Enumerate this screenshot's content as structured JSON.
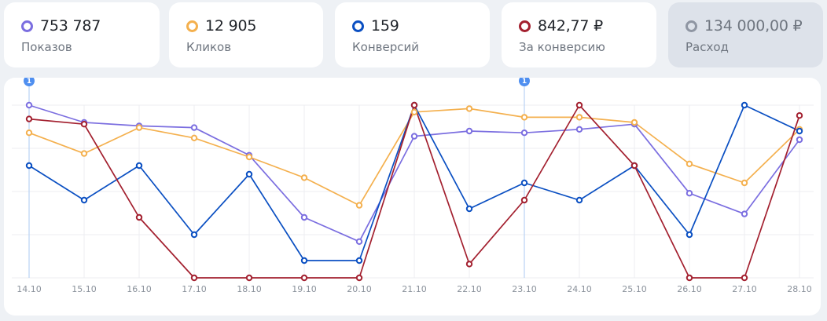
{
  "metrics": [
    {
      "value": "753 787",
      "label": "Показов",
      "color": "#7b6ee0",
      "active": true
    },
    {
      "value": "12 905",
      "label": "Кликов",
      "color": "#f4b04e",
      "active": true
    },
    {
      "value": "159",
      "label": "Конверсий",
      "color": "#0a4fc2",
      "active": true
    },
    {
      "value": "842,77 ₽",
      "label": "За конверсию",
      "color": "#a3202f",
      "active": true
    },
    {
      "value": "134 000,00 ₽",
      "label": "Расход",
      "color": "#8f96a3",
      "active": false
    }
  ],
  "chart_data": {
    "type": "line",
    "categories": [
      "14.10",
      "15.10",
      "16.10",
      "17.10",
      "18.10",
      "19.10",
      "20.10",
      "21.10",
      "22.10",
      "23.10",
      "24.10",
      "25.10",
      "26.10",
      "27.10",
      "28.10"
    ],
    "ylim": [
      0,
      100
    ],
    "grid": true,
    "series": [
      {
        "name": "Показов",
        "color": "#7b6ee0",
        "values": [
          100,
          90,
          88,
          87,
          71,
          35,
          21,
          82,
          85,
          84,
          86,
          89,
          49,
          37,
          80
        ]
      },
      {
        "name": "Кликов",
        "color": "#f4b04e",
        "values": [
          84,
          72,
          87,
          81,
          70,
          58,
          42,
          96,
          98,
          93,
          93,
          90,
          66,
          55,
          86
        ]
      },
      {
        "name": "Конверсий",
        "color": "#0a4fc2",
        "values": [
          65,
          45,
          65,
          25,
          60,
          10,
          10,
          100,
          40,
          55,
          45,
          65,
          25,
          100,
          85
        ]
      },
      {
        "name": "За конверсию",
        "color": "#a3202f",
        "values": [
          92,
          89,
          35,
          0,
          0,
          0,
          0,
          100,
          8,
          45,
          100,
          65,
          0,
          0,
          94
        ]
      }
    ],
    "markers": [
      {
        "category": "14.10",
        "label": "1"
      },
      {
        "category": "23.10",
        "label": "1"
      }
    ]
  }
}
